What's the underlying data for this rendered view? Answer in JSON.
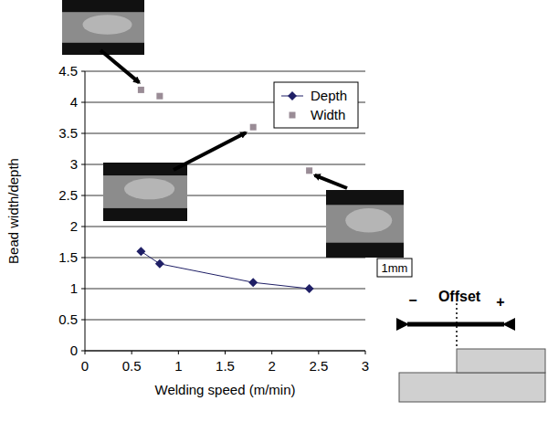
{
  "chart_data": {
    "type": "scatter",
    "x_label": "Welding speed (m/min)",
    "y_label": "Bead width/depth",
    "xlim": [
      0,
      3
    ],
    "xticks": [
      0,
      0.5,
      1,
      1.5,
      2,
      2.5,
      3
    ],
    "ylim": [
      0,
      4.5
    ],
    "yticks": [
      0,
      0.5,
      1,
      1.5,
      2,
      2.5,
      3,
      3.5,
      4,
      4.5
    ],
    "grid": true,
    "legend": "top-right",
    "series": [
      {
        "name": "Depth",
        "color": "#1f1f66",
        "marker": "diamond",
        "line_style": "solid",
        "x": [
          0.6,
          0.8,
          1.8,
          2.4
        ],
        "values": [
          1.6,
          1.4,
          1.1,
          1.0
        ]
      },
      {
        "name": "Width",
        "color": "#9a8c96",
        "marker": "square",
        "line_style": "none",
        "x": [
          0.6,
          0.8,
          1.8,
          2.4
        ],
        "values": [
          4.2,
          4.1,
          3.6,
          2.9
        ]
      }
    ],
    "annotations": [
      {
        "text": "1mm"
      },
      {
        "text": "Offset"
      },
      {
        "text": "−"
      },
      {
        "text": "+"
      }
    ]
  }
}
